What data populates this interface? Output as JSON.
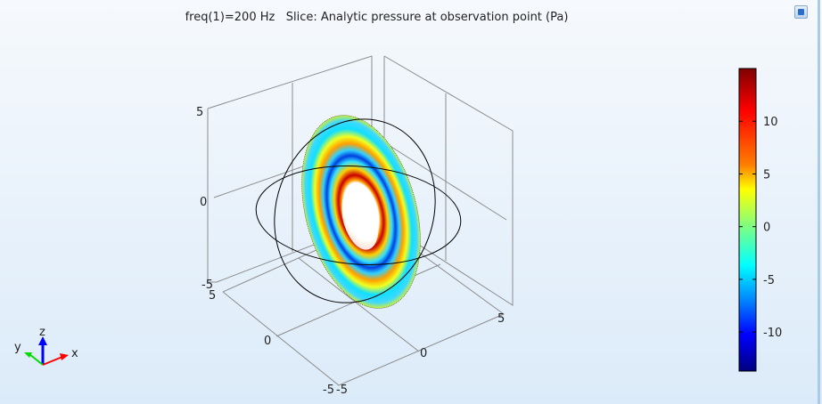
{
  "title": "freq(1)=200 Hz   Slice: Analytic pressure at observation point (Pa)",
  "chart_data": {
    "type": "heatmap",
    "title": "freq(1)=200 Hz   Slice: Analytic pressure at observation point (Pa)",
    "colormap": "rainbow",
    "grid": true,
    "axes": {
      "x": {
        "ticks": [
          "-5",
          "0",
          "5"
        ],
        "range": [
          -5,
          5
        ]
      },
      "y": {
        "ticks": [
          "-5",
          "0",
          "5"
        ],
        "range": [
          -5,
          5
        ]
      },
      "z": {
        "ticks": [
          "-5",
          "0",
          "5"
        ],
        "range": [
          -5,
          5
        ]
      }
    },
    "colorbar": {
      "range": [
        -13.7,
        15
      ],
      "ticks": [
        "10",
        "5",
        "0",
        "-5",
        "-10"
      ],
      "tick_values": [
        10,
        5,
        0,
        -5,
        -10
      ],
      "colors": [
        "#7f0000",
        "#ff0000",
        "#ff8000",
        "#ffff00",
        "#80ff80",
        "#00ffff",
        "#0080ff",
        "#0000ff",
        "#00007f"
      ]
    },
    "triad": {
      "x": "x",
      "y": "y",
      "z": "z",
      "colors": {
        "x": "#ff0000",
        "y": "#00cc00",
        "z": "#0000ff"
      }
    }
  }
}
